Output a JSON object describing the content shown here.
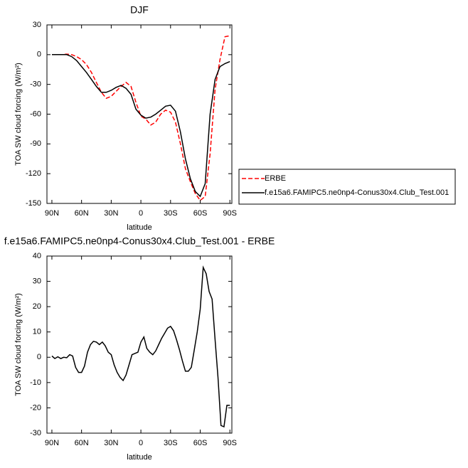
{
  "chart_data": [
    {
      "type": "line",
      "title": "DJF",
      "x_label": "latitude",
      "y_label": "TOA SW cloud forcing (W/m²)",
      "x": [
        90,
        85,
        80,
        75,
        70,
        65,
        60,
        55,
        50,
        45,
        40,
        35,
        30,
        25,
        20,
        15,
        10,
        5,
        0,
        -5,
        -10,
        -15,
        -20,
        -25,
        -30,
        -35,
        -40,
        -45,
        -50,
        -55,
        -60,
        -65,
        -70,
        -75,
        -80,
        -85,
        -90
      ],
      "xlim": [
        95,
        -92
      ],
      "xticks": [
        {
          "value": 90,
          "label": "90N"
        },
        {
          "value": 60,
          "label": "60N"
        },
        {
          "value": 30,
          "label": "30N"
        },
        0,
        {
          "value": -30,
          "label": "30S"
        },
        {
          "value": -60,
          "label": "60S"
        },
        {
          "value": -90,
          "label": "90S"
        }
      ],
      "ylim": [
        -150,
        30
      ],
      "yticks": [
        30,
        0,
        -30,
        -60,
        -90,
        -120,
        -150
      ],
      "legend": "right",
      "series": [
        {
          "name": "ERBE",
          "color": "#ff0000",
          "dash": true,
          "values": [
            0,
            0,
            0,
            0.5,
            0,
            -2,
            -5,
            -10,
            -18,
            -28,
            -38,
            -44,
            -42,
            -37,
            -32,
            -28,
            -32,
            -48,
            -62,
            -65,
            -71,
            -68,
            -60,
            -56,
            -58,
            -68,
            -90,
            -115,
            -128,
            -140,
            -147,
            -143,
            -100,
            -35,
            -5,
            18,
            19
          ]
        },
        {
          "name": "f.e15a6.FAMIPC5.ne0np4-Conus30x4.Club_Test.001",
          "color": "#000000",
          "dash": false,
          "values": [
            0,
            0,
            0,
            0,
            -2,
            -6,
            -12,
            -18,
            -25,
            -32,
            -38,
            -38,
            -36,
            -33,
            -31,
            -34,
            -40,
            -55,
            -61,
            -64,
            -63,
            -60,
            -56,
            -52,
            -51,
            -57,
            -78,
            -105,
            -125,
            -138,
            -143,
            -130,
            -60,
            -25,
            -12,
            -9,
            -7
          ]
        }
      ]
    },
    {
      "type": "line",
      "title": "f.e15a6.FAMIPC5.ne0np4-Conus30x4.Club_Test.001 - ERBE",
      "x_label": "latitude",
      "y_label": "TOA SW cloud forcing (W/m²)",
      "x": [
        90,
        87,
        84,
        81,
        78,
        75,
        72,
        69,
        66,
        63,
        60,
        57,
        54,
        51,
        48,
        45,
        42,
        39,
        36,
        33,
        30,
        27,
        24,
        21,
        18,
        15,
        12,
        9,
        6,
        3,
        0,
        -3,
        -6,
        -9,
        -12,
        -15,
        -18,
        -21,
        -24,
        -27,
        -30,
        -33,
        -36,
        -39,
        -42,
        -45,
        -48,
        -51,
        -54,
        -57,
        -60,
        -63,
        -66,
        -69,
        -72,
        -75,
        -78,
        -81,
        -84,
        -87,
        -90
      ],
      "xlim": [
        95,
        -92
      ],
      "xticks": [
        {
          "value": 90,
          "label": "90N"
        },
        {
          "value": 60,
          "label": "60N"
        },
        {
          "value": 30,
          "label": "30N"
        },
        0,
        {
          "value": -30,
          "label": "30S"
        },
        {
          "value": -60,
          "label": "60S"
        },
        {
          "value": -90,
          "label": "90S"
        }
      ],
      "ylim": [
        -30,
        40
      ],
      "yticks": [
        40,
        30,
        20,
        10,
        0,
        -10,
        -20,
        -30
      ],
      "series": [
        {
          "color": "#000000",
          "dash": false,
          "values": [
            0.5,
            -0.5,
            0.2,
            -0.5,
            0,
            -0.2,
            1,
            0.5,
            -4,
            -6,
            -6,
            -3.5,
            2,
            5,
            6.3,
            6,
            5,
            6,
            4.5,
            2,
            1,
            -3,
            -6,
            -8,
            -9.2,
            -7,
            -3,
            1,
            1.5,
            2,
            6,
            8,
            3.5,
            2,
            1,
            2.5,
            5,
            7.5,
            9.5,
            11.5,
            12.2,
            10.5,
            7,
            3,
            -1.5,
            -5.5,
            -5.5,
            -4,
            3,
            10,
            19,
            35.5,
            33,
            26,
            23,
            7,
            -8,
            -27,
            -27.5,
            -19,
            -19
          ]
        }
      ]
    }
  ]
}
